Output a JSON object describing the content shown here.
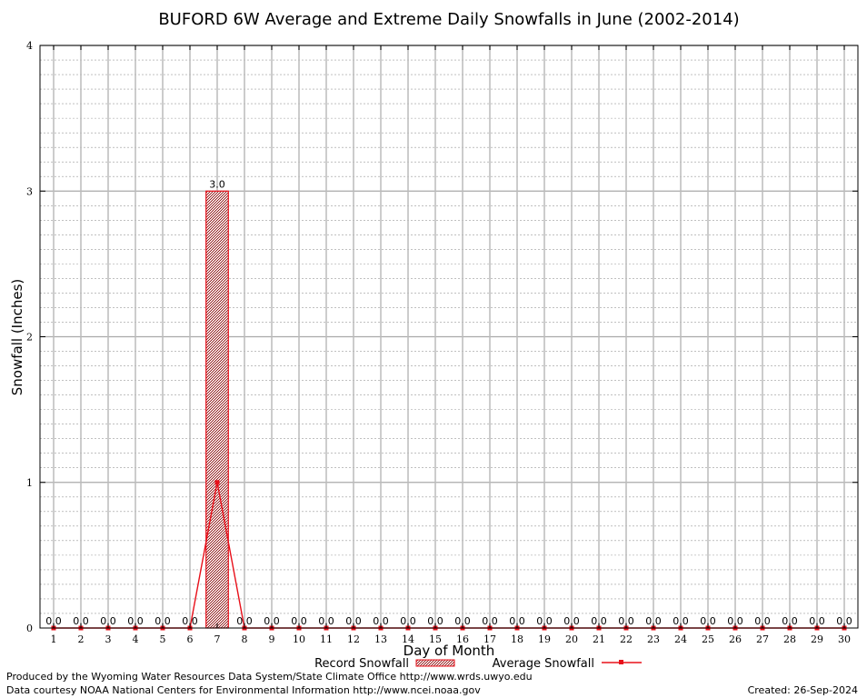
{
  "chart_data": {
    "type": "bar",
    "title": "BUFORD 6W Average and Extreme Daily Snowfalls in June (2002-2014)",
    "xlabel": "Day of Month",
    "ylabel": "Snowfall (Inches)",
    "ylim": [
      0,
      4
    ],
    "y_ticks": [
      "0",
      "1",
      "2",
      "3",
      "4"
    ],
    "categories": [
      "1",
      "2",
      "3",
      "4",
      "5",
      "6",
      "7",
      "8",
      "9",
      "10",
      "11",
      "12",
      "13",
      "14",
      "15",
      "16",
      "17",
      "18",
      "19",
      "20",
      "21",
      "22",
      "23",
      "24",
      "25",
      "26",
      "27",
      "28",
      "29",
      "30"
    ],
    "grid": true,
    "legend_position": "bottom",
    "series": [
      {
        "name": "Record Snowfall",
        "kind": "bar",
        "color": "#8b1a1a",
        "values": [
          0,
          0,
          0,
          0,
          0,
          0,
          3.0,
          0,
          0,
          0,
          0,
          0,
          0,
          0,
          0,
          0,
          0,
          0,
          0,
          0,
          0,
          0,
          0,
          0,
          0,
          0,
          0,
          0,
          0,
          0
        ],
        "labels": [
          "0.0",
          "0.0",
          "0.0",
          "0.0",
          "0.0",
          "0.0",
          "3.0",
          "0.0",
          "0.0",
          "0.0",
          "0.0",
          "0.0",
          "0.0",
          "0.0",
          "0.0",
          "0.0",
          "0.0",
          "0.0",
          "0.0",
          "0.0",
          "0.0",
          "0.0",
          "0.0",
          "0.0",
          "0.0",
          "0.0",
          "0.0",
          "0.0",
          "0.0",
          "0.0"
        ]
      },
      {
        "name": "Average Snowfall",
        "kind": "line",
        "color": "#e8101a",
        "values": [
          0,
          0,
          0,
          0,
          0,
          0,
          1.0,
          0,
          0,
          0,
          0,
          0,
          0,
          0,
          0,
          0,
          0,
          0,
          0,
          0,
          0,
          0,
          0,
          0,
          0,
          0,
          0,
          0,
          0,
          0
        ]
      }
    ]
  },
  "footer": {
    "produced_by": "Produced by the Wyoming Water Resources Data System/State Climate Office http://www.wrds.uwyo.edu",
    "courtesy": "Data courtesy NOAA National Centers for Environmental Information http://www.ncei.noaa.gov",
    "created": "Created: 26-Sep-2024"
  }
}
